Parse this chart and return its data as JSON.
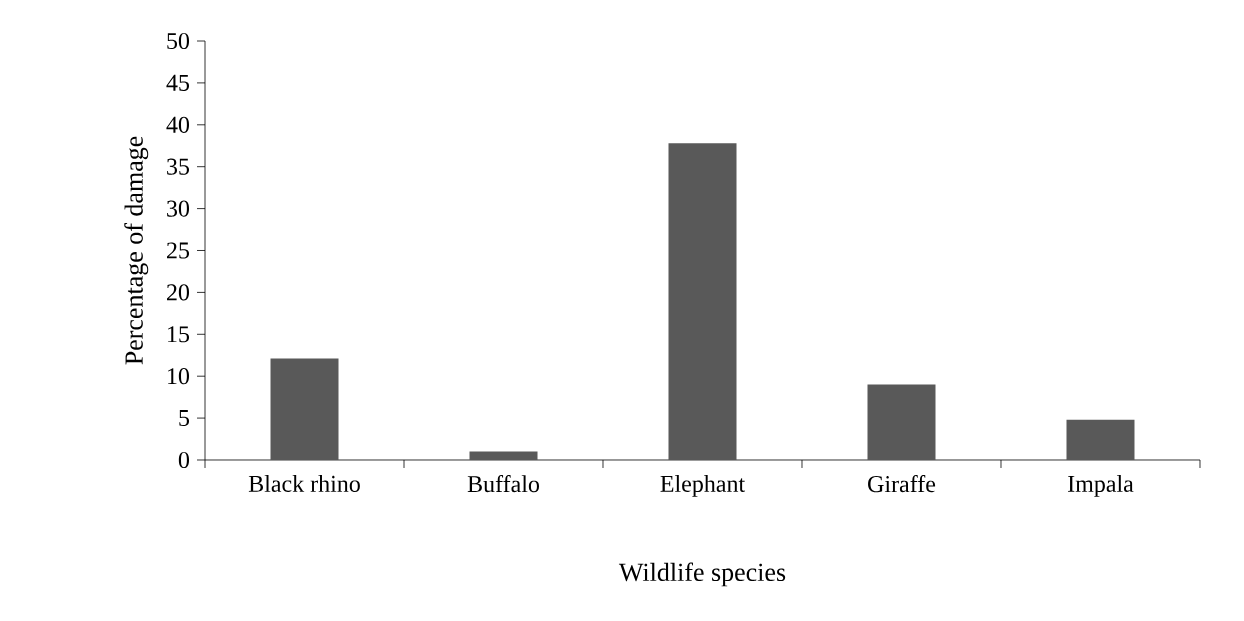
{
  "chart_data": {
    "type": "bar",
    "xlabel": "Wildlife species",
    "ylabel": "Percentage of damage",
    "categories": [
      "Black rhino",
      "Buffalo",
      "Elephant",
      "Giraffe",
      "Impala"
    ],
    "values": [
      12.1,
      1,
      37.8,
      9,
      4.8
    ],
    "color": "#595959",
    "ylim": [
      0,
      50
    ],
    "yticks": [
      0,
      5,
      10,
      15,
      20,
      25,
      30,
      35,
      40,
      45,
      50
    ],
    "grid": false
  }
}
